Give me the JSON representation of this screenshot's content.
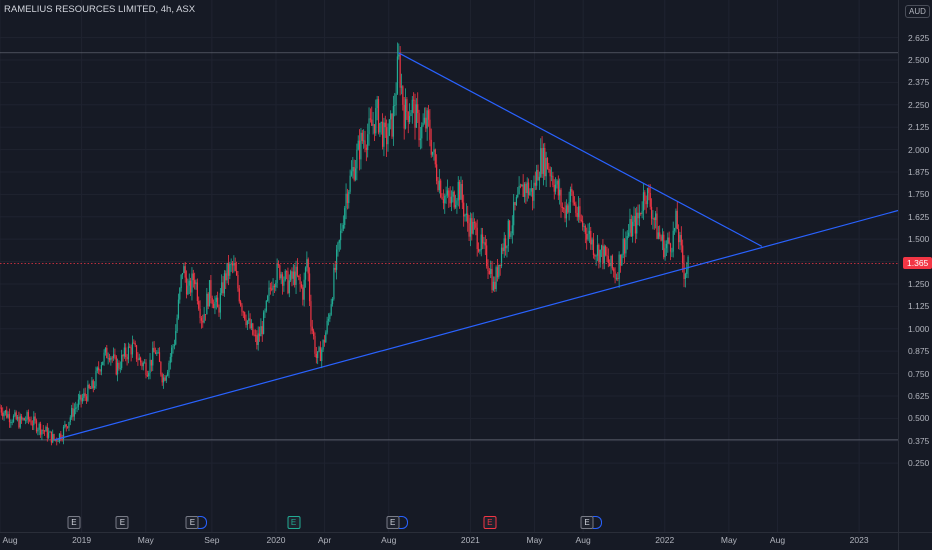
{
  "header": {
    "title": "RAMELIUS RESOURCES LIMITED, 4h, ASX",
    "currency": "AUD"
  },
  "price_tag": {
    "value": "1.365",
    "price": 1.365
  },
  "events": [
    {
      "label": "E",
      "date": 2018.96,
      "style": "gray",
      "dot": false
    },
    {
      "label": "E",
      "date": 2019.21,
      "style": "gray",
      "dot": false
    },
    {
      "label": "E",
      "date": 2019.57,
      "style": "gray",
      "dot": true
    },
    {
      "label": "E",
      "date": 2020.09,
      "style": "green",
      "dot": false
    },
    {
      "label": "E",
      "date": 2020.6,
      "style": "gray",
      "dot": true
    },
    {
      "label": "E",
      "date": 2021.1,
      "style": "red",
      "dot": false
    },
    {
      "label": "E",
      "date": 2021.6,
      "style": "gray",
      "dot": true
    }
  ],
  "chart_data": {
    "type": "candlestick",
    "title": "RAMELIUS RESOURCES LIMITED, 4h, ASX",
    "y_unit": "AUD",
    "ylim": [
      0.2,
      2.72
    ],
    "xlim": [
      2018.58,
      2023.2
    ],
    "y_ticks": [
      "0.250",
      "0.375",
      "0.500",
      "0.625",
      "0.750",
      "0.875",
      "1.000",
      "1.125",
      "1.250",
      "1.375",
      "1.500",
      "1.625",
      "1.750",
      "1.875",
      "2.000",
      "2.125",
      "2.250",
      "2.375",
      "2.500",
      "2.625"
    ],
    "x_ticks": [
      {
        "label": "Aug",
        "date": 2018.58
      },
      {
        "label": "2019",
        "date": 2019.0
      },
      {
        "label": "May",
        "date": 2019.33
      },
      {
        "label": "Sep",
        "date": 2019.67
      },
      {
        "label": "2020",
        "date": 2020.0
      },
      {
        "label": "Apr",
        "date": 2020.25
      },
      {
        "label": "Aug",
        "date": 2020.58
      },
      {
        "label": "2021",
        "date": 2021.0
      },
      {
        "label": "May",
        "date": 2021.33
      },
      {
        "label": "Aug",
        "date": 2021.58
      },
      {
        "label": "2022",
        "date": 2022.0
      },
      {
        "label": "May",
        "date": 2022.33
      },
      {
        "label": "Aug",
        "date": 2022.58
      },
      {
        "label": "2023",
        "date": 2023.0
      }
    ],
    "price_path": [
      [
        2018.58,
        0.56
      ],
      [
        2018.62,
        0.52
      ],
      [
        2018.68,
        0.48
      ],
      [
        2018.72,
        0.5
      ],
      [
        2018.76,
        0.47
      ],
      [
        2018.82,
        0.42
      ],
      [
        2018.86,
        0.38
      ],
      [
        2018.9,
        0.42
      ],
      [
        2018.96,
        0.55
      ],
      [
        2019.02,
        0.63
      ],
      [
        2019.06,
        0.68
      ],
      [
        2019.1,
        0.82
      ],
      [
        2019.14,
        0.88
      ],
      [
        2019.18,
        0.78
      ],
      [
        2019.22,
        0.85
      ],
      [
        2019.26,
        0.9
      ],
      [
        2019.3,
        0.82
      ],
      [
        2019.34,
        0.78
      ],
      [
        2019.38,
        0.88
      ],
      [
        2019.42,
        0.72
      ],
      [
        2019.45,
        0.82
      ],
      [
        2019.48,
        0.95
      ],
      [
        2019.52,
        1.35
      ],
      [
        2019.55,
        1.2
      ],
      [
        2019.58,
        1.3
      ],
      [
        2019.62,
        1.05
      ],
      [
        2019.66,
        1.22
      ],
      [
        2019.7,
        1.1
      ],
      [
        2019.74,
        1.3
      ],
      [
        2019.78,
        1.35
      ],
      [
        2019.82,
        1.15
      ],
      [
        2019.86,
        1.02
      ],
      [
        2019.9,
        0.92
      ],
      [
        2019.94,
        1.05
      ],
      [
        2019.98,
        1.28
      ],
      [
        2020.02,
        1.33
      ],
      [
        2020.06,
        1.25
      ],
      [
        2020.1,
        1.3
      ],
      [
        2020.14,
        1.2
      ],
      [
        2020.16,
        1.4
      ],
      [
        2020.18,
        1.05
      ],
      [
        2020.21,
        0.82
      ],
      [
        2020.24,
        0.9
      ],
      [
        2020.27,
        1.05
      ],
      [
        2020.3,
        1.3
      ],
      [
        2020.33,
        1.5
      ],
      [
        2020.36,
        1.75
      ],
      [
        2020.4,
        1.9
      ],
      [
        2020.44,
        2.05
      ],
      [
        2020.48,
        2.1
      ],
      [
        2020.52,
        2.2
      ],
      [
        2020.56,
        2.05
      ],
      [
        2020.6,
        2.15
      ],
      [
        2020.63,
        2.5
      ],
      [
        2020.66,
        2.2
      ],
      [
        2020.7,
        2.25
      ],
      [
        2020.74,
        2.1
      ],
      [
        2020.78,
        2.15
      ],
      [
        2020.82,
        1.9
      ],
      [
        2020.86,
        1.75
      ],
      [
        2020.9,
        1.7
      ],
      [
        2020.94,
        1.8
      ],
      [
        2020.98,
        1.6
      ],
      [
        2021.02,
        1.55
      ],
      [
        2021.06,
        1.45
      ],
      [
        2021.1,
        1.35
      ],
      [
        2021.12,
        1.22
      ],
      [
        2021.16,
        1.45
      ],
      [
        2021.2,
        1.55
      ],
      [
        2021.24,
        1.7
      ],
      [
        2021.28,
        1.8
      ],
      [
        2021.32,
        1.75
      ],
      [
        2021.36,
        1.95
      ],
      [
        2021.4,
        1.92
      ],
      [
        2021.44,
        1.8
      ],
      [
        2021.48,
        1.65
      ],
      [
        2021.52,
        1.75
      ],
      [
        2021.56,
        1.6
      ],
      [
        2021.6,
        1.55
      ],
      [
        2021.64,
        1.45
      ],
      [
        2021.68,
        1.42
      ],
      [
        2021.72,
        1.35
      ],
      [
        2021.75,
        1.3
      ],
      [
        2021.78,
        1.45
      ],
      [
        2021.82,
        1.55
      ],
      [
        2021.86,
        1.6
      ],
      [
        2021.9,
        1.78
      ],
      [
        2021.93,
        1.68
      ],
      [
        2021.96,
        1.55
      ],
      [
        2022.0,
        1.45
      ],
      [
        2022.04,
        1.5
      ],
      [
        2022.06,
        1.6
      ],
      [
        2022.08,
        1.45
      ],
      [
        2022.1,
        1.32
      ],
      [
        2022.12,
        1.365
      ]
    ],
    "trendlines": [
      {
        "name": "ascending support",
        "from": [
          2018.86,
          0.38
        ],
        "to": [
          2023.2,
          1.66
        ]
      },
      {
        "name": "descending resistance",
        "from": [
          2020.63,
          2.54
        ],
        "to": [
          2022.5,
          1.46
        ]
      }
    ],
    "horizontal_levels": [
      2.54,
      0.38
    ],
    "last_price": 1.365
  }
}
